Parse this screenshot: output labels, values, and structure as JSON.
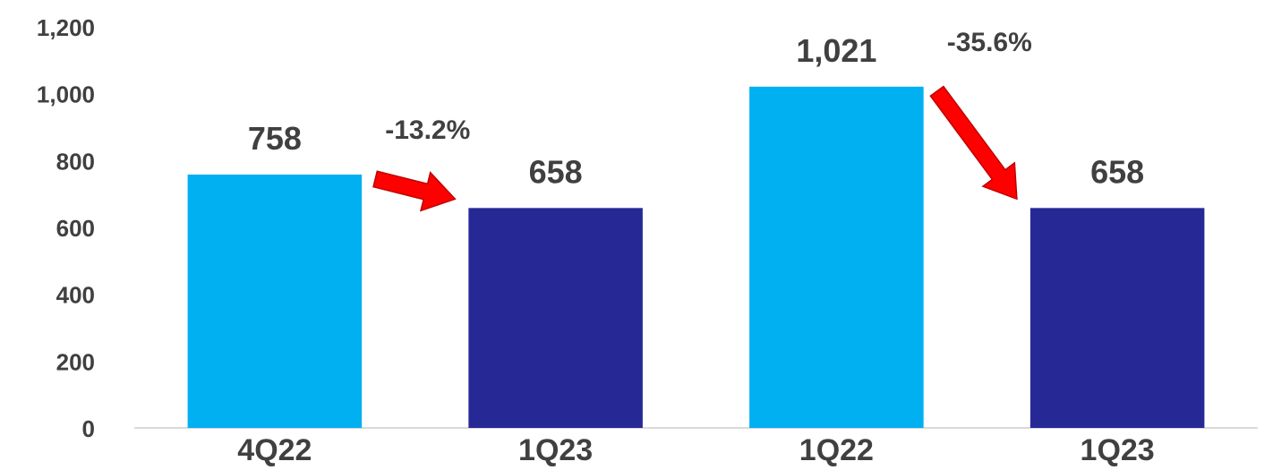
{
  "chart_data": {
    "type": "bar",
    "categories": [
      "4Q22",
      "1Q23",
      "1Q22",
      "1Q23"
    ],
    "values": [
      758,
      658,
      1021,
      658
    ],
    "data_labels": [
      "758",
      "658",
      "1,021",
      "658"
    ],
    "bar_colors": [
      "#00B0F0",
      "#262896",
      "#00B0F0",
      "#262896"
    ],
    "ylim": [
      0,
      1200
    ],
    "yticks": [
      0,
      200,
      400,
      600,
      800,
      1000,
      1200
    ],
    "ytick_labels": [
      "0",
      "200",
      "400",
      "600",
      "800",
      "1,000",
      "1,200"
    ],
    "grid": false,
    "annotations": [
      {
        "text": "-13.2%",
        "from_index": 0,
        "to_index": 1,
        "color": "#FF0000"
      },
      {
        "text": "-35.6%",
        "from_index": 2,
        "to_index": 3,
        "color": "#FF0000"
      }
    ]
  }
}
